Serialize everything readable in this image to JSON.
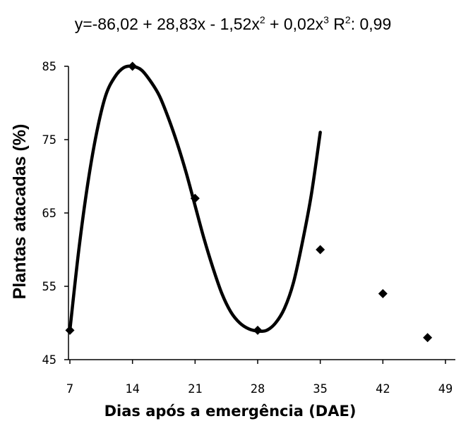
{
  "chart_data": {
    "type": "scatter",
    "title_parts": {
      "a": "y=-86,02 + 28,83x - 1,52x",
      "a_sup": "2",
      "b": " + 0,02x",
      "b_sup": "3",
      "c": "   R",
      "c_sup": "2",
      "d": ": 0,99"
    },
    "xlabel": "Dias após a emergência (DAE)",
    "ylabel": "Plantas atacadas (%)",
    "xlim": [
      7,
      49
    ],
    "ylim": [
      45,
      85
    ],
    "x_ticks": [
      "7",
      "14",
      "21",
      "28",
      "35",
      "42",
      "49"
    ],
    "y_ticks": [
      "85",
      "75",
      "65",
      "55",
      "45"
    ],
    "grid": false,
    "series": [
      {
        "kind": "points",
        "marker": "diamond",
        "color": "#000000",
        "points": [
          [
            7,
            49
          ],
          [
            14,
            85
          ],
          [
            21,
            67
          ],
          [
            28,
            49
          ],
          [
            35,
            60
          ],
          [
            42,
            54
          ],
          [
            47,
            48
          ]
        ]
      },
      {
        "kind": "curve",
        "color": "#000000",
        "points": [
          [
            7,
            49
          ],
          [
            8,
            60
          ],
          [
            9,
            69
          ],
          [
            10,
            76
          ],
          [
            11,
            81
          ],
          [
            12,
            83.5
          ],
          [
            13,
            84.8
          ],
          [
            14,
            85
          ],
          [
            15,
            84.5
          ],
          [
            16,
            83
          ],
          [
            17,
            81
          ],
          [
            18,
            78
          ],
          [
            19,
            74.5
          ],
          [
            20,
            70.5
          ],
          [
            21,
            66
          ],
          [
            22,
            61.5
          ],
          [
            23,
            57.5
          ],
          [
            24,
            54
          ],
          [
            25,
            51.5
          ],
          [
            26,
            50
          ],
          [
            27,
            49.2
          ],
          [
            28,
            48.9
          ],
          [
            29,
            49
          ],
          [
            30,
            50
          ],
          [
            31,
            52
          ],
          [
            32,
            55.5
          ],
          [
            33,
            61
          ],
          [
            34,
            67.5
          ],
          [
            35,
            76
          ]
        ]
      }
    ]
  }
}
